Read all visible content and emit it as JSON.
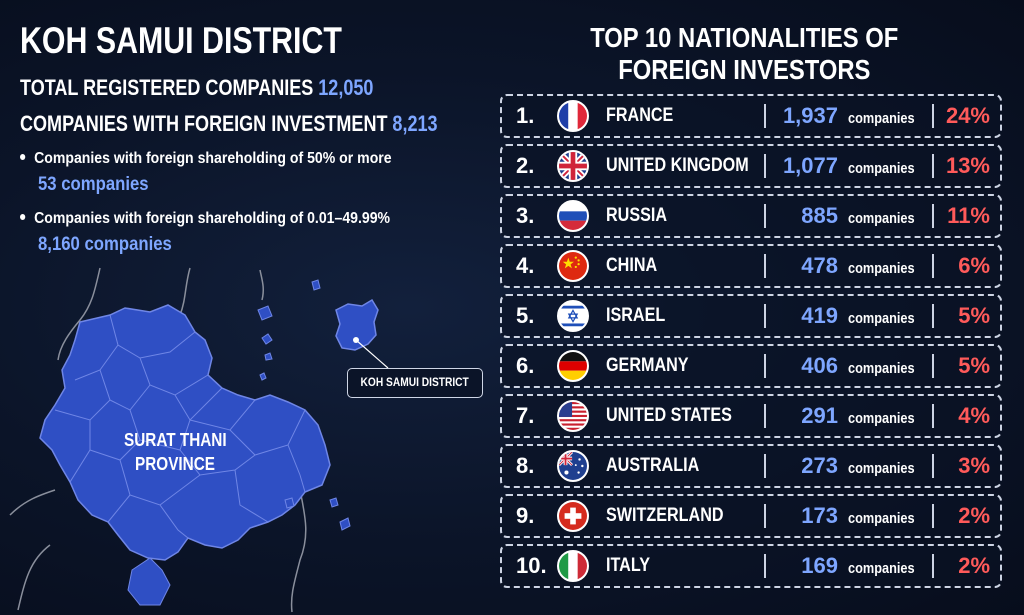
{
  "title": "KOH SAMUI DISTRICT",
  "total_registered": {
    "label": "TOTAL REGISTERED COMPANIES",
    "value": "12,050"
  },
  "foreign_investment": {
    "label": "COMPANIES WITH FOREIGN INVESTMENT",
    "value": "8,213"
  },
  "bullets": [
    {
      "text": "Companies with foreign shareholding of 50% or more",
      "value": "53 companies"
    },
    {
      "text": "Companies with foreign shareholding of 0.01–49.99%",
      "value": "8,160 companies"
    }
  ],
  "map": {
    "province_label_line1": "SURAT THANI",
    "province_label_line2": "PROVINCE",
    "callout": "KOH SAMUI DISTRICT",
    "fill_color": "#2f4fc4",
    "border_color": "#6f86e6"
  },
  "right_title": {
    "line1": "TOP 10 NATIONALITIES OF",
    "line2": "FOREIGN INVESTORS"
  },
  "colors": {
    "accent_blue": "#7ea6ff",
    "accent_red": "#ff5a5a",
    "background": "#0b1428"
  },
  "unit": "companies",
  "nationalities": [
    {
      "rank": "1.",
      "country": "FRANCE",
      "flag": "france-flag-icon",
      "count": "1,937",
      "percent": "24%"
    },
    {
      "rank": "2.",
      "country": "UNITED KINGDOM",
      "flag": "united-kingdom-flag-icon",
      "count": "1,077",
      "percent": "13%"
    },
    {
      "rank": "3.",
      "country": "RUSSIA",
      "flag": "russia-flag-icon",
      "count": "885",
      "percent": "11%"
    },
    {
      "rank": "4.",
      "country": "CHINA",
      "flag": "china-flag-icon",
      "count": "478",
      "percent": "6%"
    },
    {
      "rank": "5.",
      "country": "ISRAEL",
      "flag": "israel-flag-icon",
      "count": "419",
      "percent": "5%"
    },
    {
      "rank": "6.",
      "country": "GERMANY",
      "flag": "germany-flag-icon",
      "count": "406",
      "percent": "5%"
    },
    {
      "rank": "7.",
      "country": "UNITED STATES",
      "flag": "united-states-flag-icon",
      "count": "291",
      "percent": "4%"
    },
    {
      "rank": "8.",
      "country": "AUSTRALIA",
      "flag": "australia-flag-icon",
      "count": "273",
      "percent": "3%"
    },
    {
      "rank": "9.",
      "country": "SWITZERLAND",
      "flag": "switzerland-flag-icon",
      "count": "173",
      "percent": "2%"
    },
    {
      "rank": "10.",
      "country": "ITALY",
      "flag": "italy-flag-icon",
      "count": "169",
      "percent": "2%"
    }
  ]
}
